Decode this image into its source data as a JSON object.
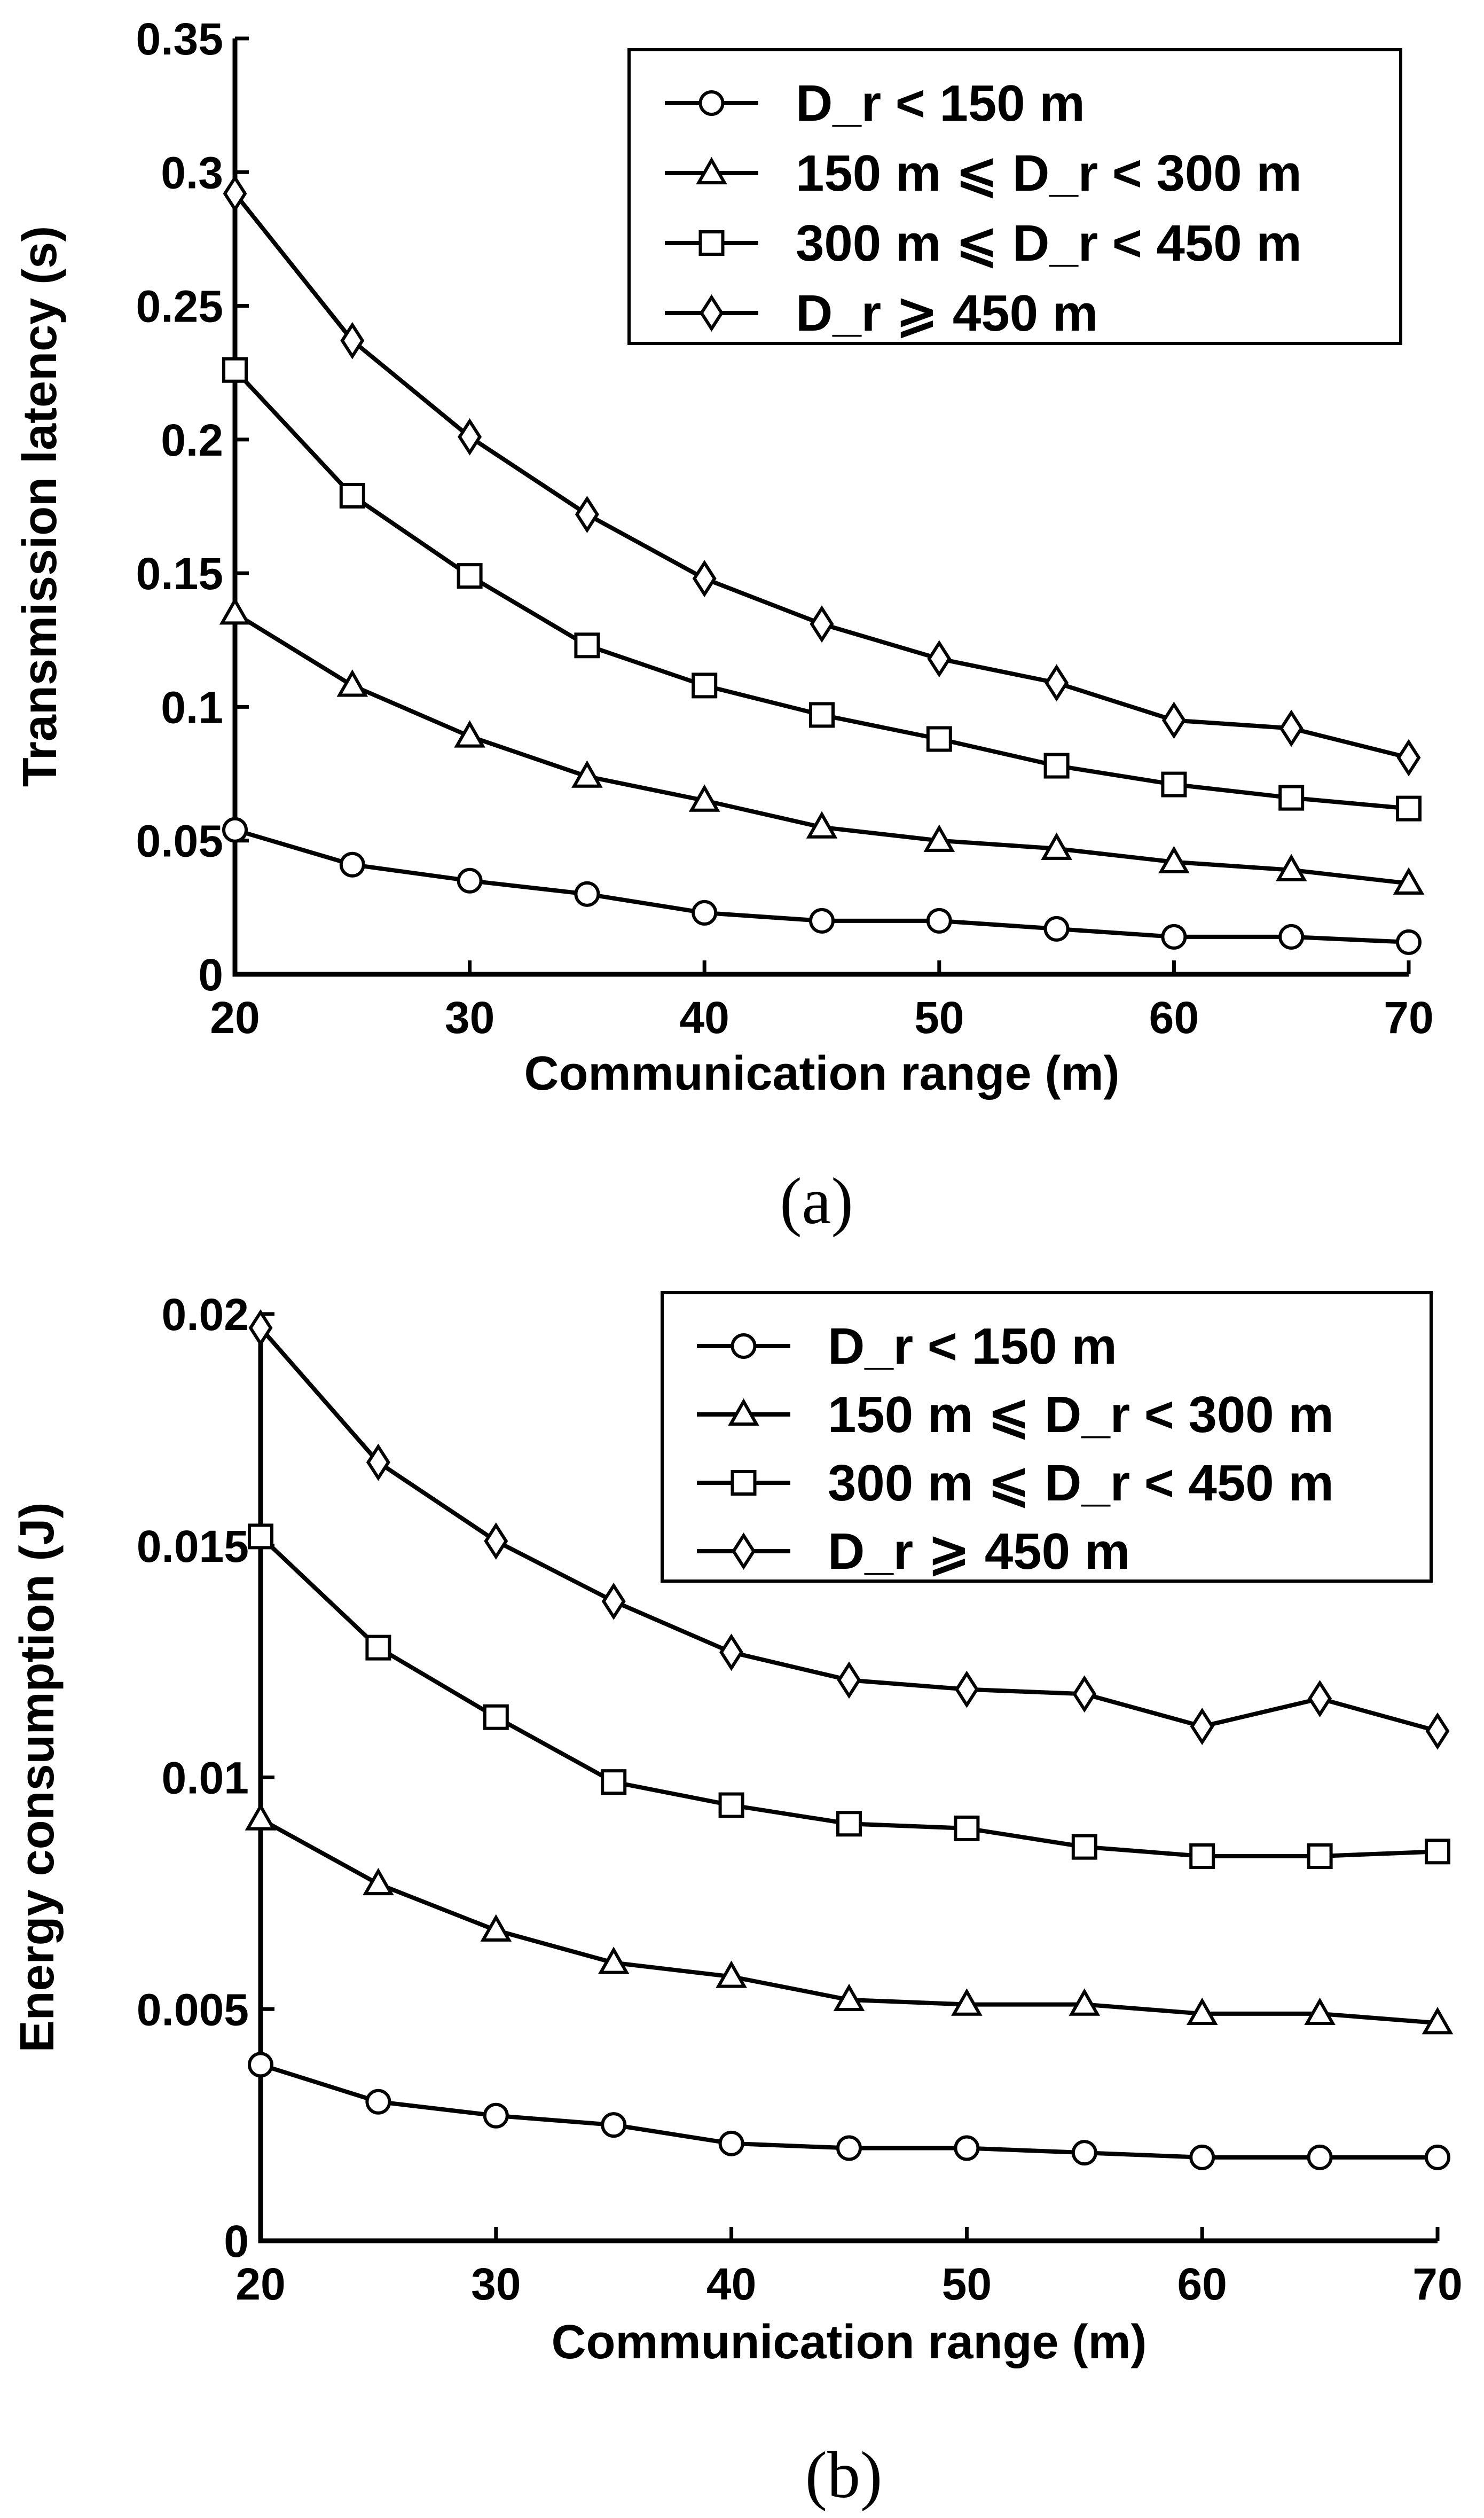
{
  "chart_data": [
    {
      "type": "line",
      "panel": "a",
      "caption": "(a)",
      "xlabel": "Communication range (m)",
      "ylabel": "Transmission latency (s)",
      "xlim": [
        20,
        70
      ],
      "ylim": [
        0,
        0.35
      ],
      "xticks": [
        "20",
        "30",
        "40",
        "50",
        "60",
        "70"
      ],
      "xtick_values": [
        20,
        30,
        40,
        50,
        60,
        70
      ],
      "yticks": [
        "0",
        "0.05",
        "0.1",
        "0.15",
        "0.2",
        "0.25",
        "0.3",
        "0.35"
      ],
      "ytick_values": [
        0,
        0.05,
        0.1,
        0.15,
        0.2,
        0.25,
        0.3,
        0.35
      ],
      "legend_position": "top-right",
      "x": [
        20,
        25,
        30,
        35,
        40,
        45,
        50,
        55,
        60,
        65,
        70
      ],
      "series": [
        {
          "name": "D_r < 150 m",
          "marker": "circle",
          "values": [
            0.054,
            0.041,
            0.035,
            0.03,
            0.023,
            0.02,
            0.02,
            0.017,
            0.014,
            0.014,
            0.012
          ]
        },
        {
          "name": "150 m ⩽ D_r < 300 m",
          "marker": "triangle",
          "values": [
            0.135,
            0.108,
            0.089,
            0.074,
            0.065,
            0.055,
            0.05,
            0.047,
            0.042,
            0.039,
            0.034
          ]
        },
        {
          "name": "300 m ⩽ D_r < 450 m",
          "marker": "square",
          "values": [
            0.226,
            0.179,
            0.149,
            0.123,
            0.108,
            0.097,
            0.088,
            0.078,
            0.071,
            0.066,
            0.062
          ]
        },
        {
          "name": "D_r ⩾ 450 m",
          "marker": "diamond",
          "values": [
            0.292,
            0.237,
            0.201,
            0.172,
            0.148,
            0.131,
            0.118,
            0.109,
            0.095,
            0.092,
            0.081
          ]
        }
      ]
    },
    {
      "type": "line",
      "panel": "b",
      "caption": "(b)",
      "xlabel": "Communication range (m)",
      "ylabel": "Energy consumption (J)",
      "xlim": [
        20,
        70
      ],
      "ylim": [
        0,
        0.02
      ],
      "xticks": [
        "20",
        "30",
        "40",
        "50",
        "60",
        "70"
      ],
      "xtick_values": [
        20,
        30,
        40,
        50,
        60,
        70
      ],
      "yticks": [
        "0",
        "0.005",
        "0.01",
        "0.015",
        "0.02"
      ],
      "ytick_values": [
        0,
        0.005,
        0.01,
        0.015,
        0.02
      ],
      "legend_position": "top-right",
      "x": [
        20,
        25,
        30,
        35,
        40,
        45,
        50,
        55,
        60,
        65,
        70
      ],
      "series": [
        {
          "name": "D_r < 150 m",
          "marker": "circle",
          "values": [
            0.0038,
            0.003,
            0.0027,
            0.0025,
            0.0021,
            0.002,
            0.002,
            0.0019,
            0.0018,
            0.0018,
            0.0018
          ]
        },
        {
          "name": "150 m ⩽ D_r < 300 m",
          "marker": "triangle",
          "values": [
            0.0091,
            0.0077,
            0.0067,
            0.006,
            0.0057,
            0.0052,
            0.0051,
            0.0051,
            0.0049,
            0.0049,
            0.0047
          ]
        },
        {
          "name": "300 m ⩽ D_r < 450 m",
          "marker": "square",
          "values": [
            0.0152,
            0.0128,
            0.0113,
            0.0099,
            0.0094,
            0.009,
            0.0089,
            0.0085,
            0.0083,
            0.0083,
            0.0084
          ]
        },
        {
          "name": "D_r ⩾ 450 m",
          "marker": "diamond",
          "values": [
            0.0197,
            0.0168,
            0.0151,
            0.0138,
            0.0127,
            0.0121,
            0.0119,
            0.0118,
            0.0111,
            0.0117,
            0.011
          ]
        }
      ]
    }
  ]
}
